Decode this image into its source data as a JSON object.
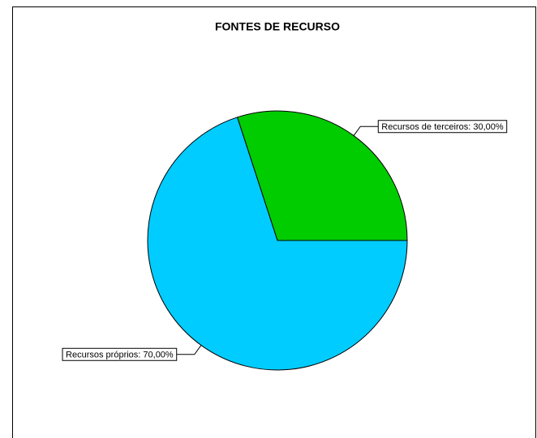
{
  "chart_data": {
    "type": "pie",
    "title": "FONTES DE RECURSO",
    "values": [
      30,
      70
    ],
    "value_labels": [
      "Recursos de terceiros: 30,00%",
      "Recursos próprios: 70,00%"
    ],
    "colors": [
      "#00cc00",
      "#00ccff"
    ]
  }
}
